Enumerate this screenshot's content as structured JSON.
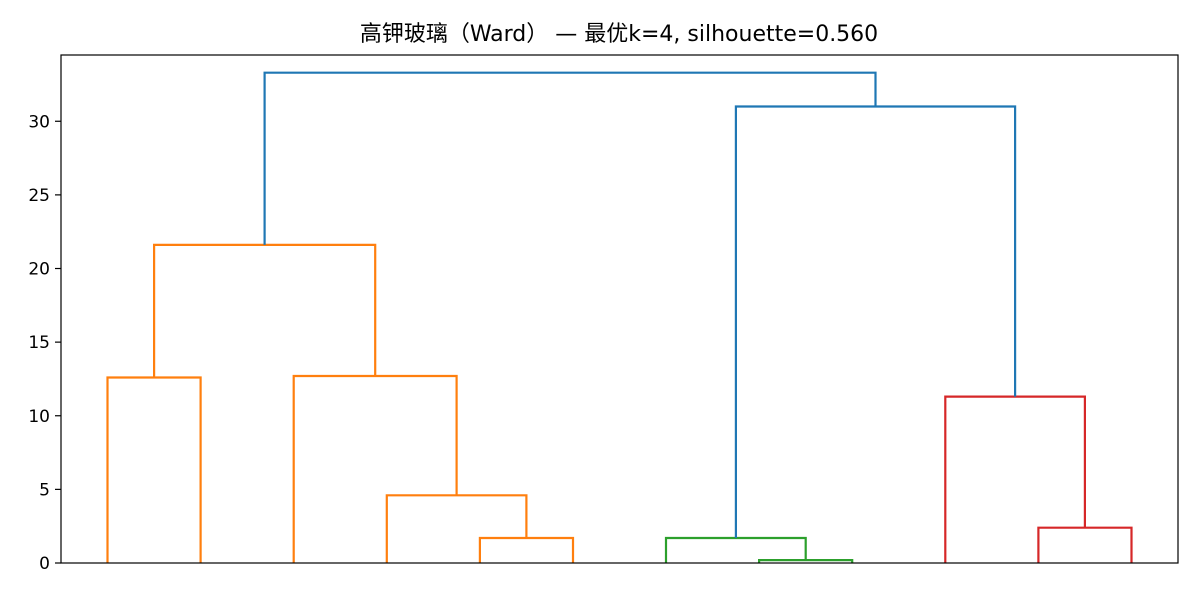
{
  "chart_data": {
    "type": "dendrogram",
    "title": "高钾玻璃（Ward） — 最优k=4, silhouette=0.560",
    "xlabel": "",
    "ylabel": "",
    "ylim": [
      0,
      34.5
    ],
    "xlim": [
      0,
      120
    ],
    "yticks": [
      0,
      5,
      10,
      15,
      20,
      25,
      30
    ],
    "grid": false,
    "leaf_labels_shown": false,
    "leaf_count": 12,
    "colors": {
      "cluster_1": "#ff7f0e",
      "cluster_2": "#2ca02c",
      "cluster_3": "#d62728",
      "above_threshold": "#1f77b4"
    },
    "links": [
      {
        "x": [
          5,
          5,
          15,
          15
        ],
        "y": [
          0,
          12.6,
          12.6,
          0
        ],
        "color": "#ff7f0e"
      },
      {
        "x": [
          45,
          45,
          55,
          55
        ],
        "y": [
          0,
          1.7,
          1.7,
          0
        ],
        "color": "#ff7f0e"
      },
      {
        "x": [
          35,
          35,
          50,
          50
        ],
        "y": [
          0,
          4.6,
          4.6,
          1.7
        ],
        "color": "#ff7f0e"
      },
      {
        "x": [
          25,
          25,
          42.5,
          42.5
        ],
        "y": [
          0,
          12.7,
          12.7,
          4.6
        ],
        "color": "#ff7f0e"
      },
      {
        "x": [
          10,
          10,
          33.75,
          33.75
        ],
        "y": [
          12.6,
          21.6,
          21.6,
          12.7
        ],
        "color": "#ff7f0e"
      },
      {
        "x": [
          75,
          75,
          85,
          85
        ],
        "y": [
          0,
          0.2,
          0.2,
          0
        ],
        "color": "#2ca02c"
      },
      {
        "x": [
          65,
          65,
          80,
          80
        ],
        "y": [
          0,
          1.7,
          1.7,
          0.2
        ],
        "color": "#2ca02c"
      },
      {
        "x": [
          105,
          105,
          115,
          115
        ],
        "y": [
          0,
          2.4,
          2.4,
          0
        ],
        "color": "#d62728"
      },
      {
        "x": [
          95,
          95,
          110,
          110
        ],
        "y": [
          0,
          11.3,
          11.3,
          2.4
        ],
        "color": "#d62728"
      },
      {
        "x": [
          72.5,
          72.5,
          102.5,
          102.5
        ],
        "y": [
          1.7,
          31.0,
          31.0,
          11.3
        ],
        "color": "#1f77b4"
      },
      {
        "x": [
          21.875,
          21.875,
          87.5,
          87.5
        ],
        "y": [
          21.6,
          33.3,
          33.3,
          31.0
        ],
        "color": "#1f77b4"
      }
    ]
  }
}
